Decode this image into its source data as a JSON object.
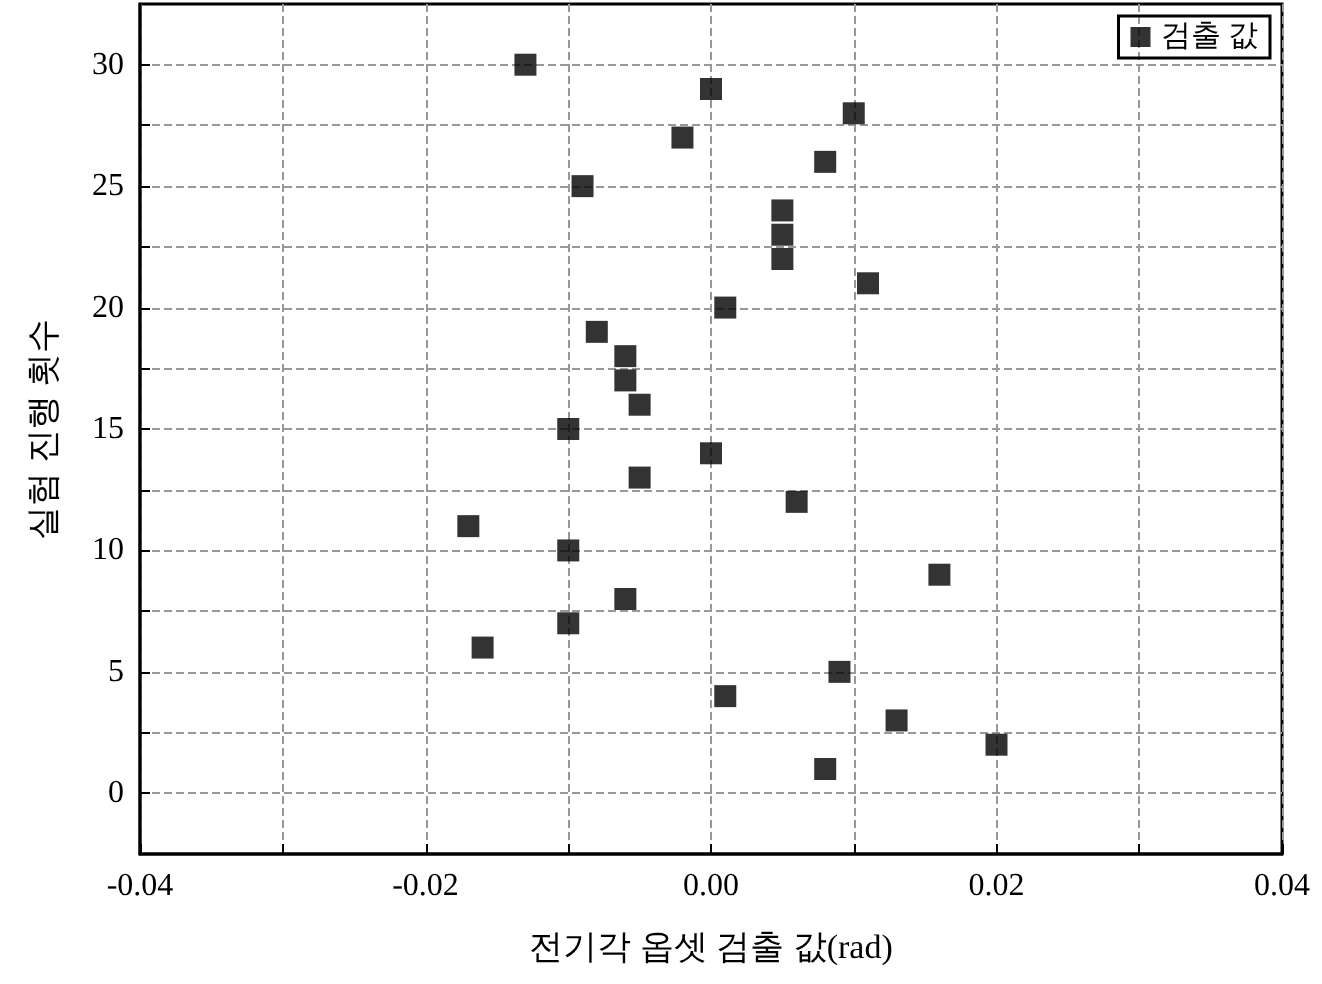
{
  "chart_data": {
    "type": "scatter",
    "xlabel": "전기각 옵셋 검출 값(rad)",
    "ylabel": "실험 진행 횟수",
    "xlim": [
      -0.04,
      0.04
    ],
    "xticks": [
      {
        "value": -0.04,
        "label": "-0.04"
      },
      {
        "value": -0.03,
        "label": null
      },
      {
        "value": -0.02,
        "label": "-0.02"
      },
      {
        "value": -0.01,
        "label": null
      },
      {
        "value": 0,
        "label": "0.00"
      },
      {
        "value": 0.01,
        "label": null
      },
      {
        "value": 0.02,
        "label": "0.02"
      },
      {
        "value": 0.03,
        "label": null
      },
      {
        "value": 0.04,
        "label": "0.04"
      }
    ],
    "ylim": [
      -2.5,
      32.5
    ],
    "yticks": [
      0,
      {
        "value": 2.5,
        "label": null
      },
      5,
      {
        "value": 7.5,
        "label": null
      },
      10,
      {
        "value": 12.5,
        "label": null
      },
      15,
      {
        "value": 17.5,
        "label": null
      },
      20,
      {
        "value": 22.5,
        "label": null
      },
      25,
      {
        "value": 27.5,
        "label": null
      },
      30
    ],
    "grid": true,
    "legend": "top right",
    "marker": "square",
    "series": [
      {
        "name": "검출 값",
        "color": "#000000",
        "x": [
          0.008,
          0.02,
          0.013,
          0.001,
          0.009,
          -0.016,
          -0.01,
          -0.006,
          0.016,
          -0.01,
          -0.017,
          0.006,
          -0.005,
          0.0,
          -0.01,
          -0.005,
          -0.006,
          -0.006,
          -0.008,
          0.001,
          0.011,
          0.005,
          0.005,
          0.005,
          -0.009,
          0.008,
          -0.002,
          0.01,
          0.0,
          -0.013
        ],
        "values": [
          1,
          2,
          3,
          4,
          5,
          6,
          7,
          8,
          9,
          10,
          11,
          12,
          13,
          14,
          15,
          16,
          17,
          18,
          19,
          20,
          21,
          22,
          23,
          24,
          25,
          26,
          27,
          28,
          29,
          30
        ]
      }
    ]
  }
}
